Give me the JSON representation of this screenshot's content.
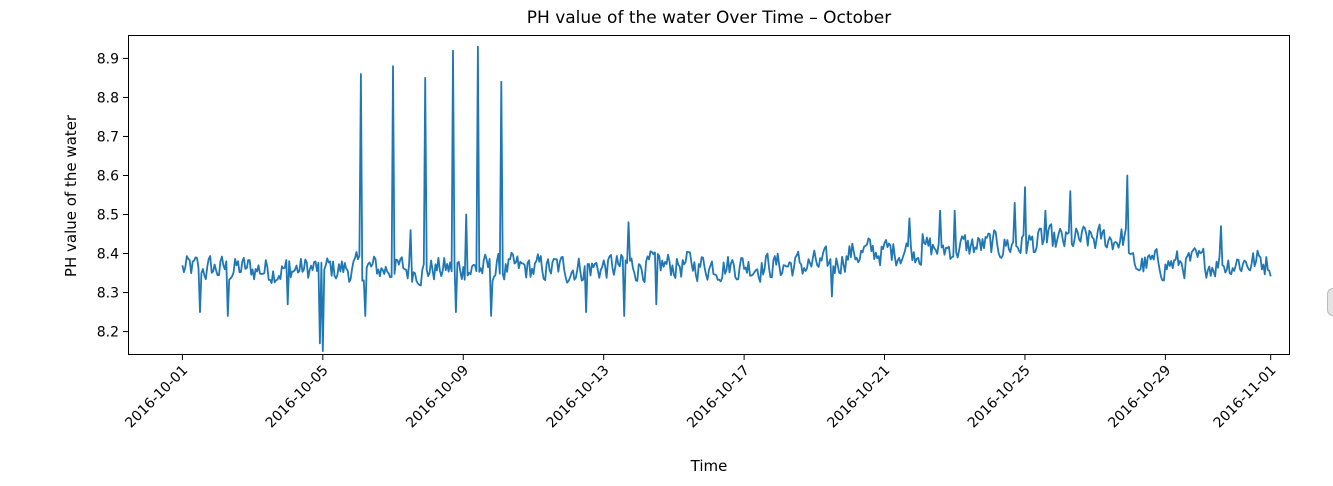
{
  "chart_data": {
    "type": "line",
    "title": "PH value of the water Over Time – October",
    "xlabel": "Time",
    "ylabel": "PH value of the water",
    "ylim": [
      8.14,
      8.96
    ],
    "y_ticks": [
      8.2,
      8.3,
      8.4,
      8.5,
      8.6,
      8.7,
      8.8,
      8.9
    ],
    "x_range_days": [
      -1.55,
      31.55
    ],
    "x_ticks": [
      {
        "day": 0,
        "label": "2016-10-01"
      },
      {
        "day": 4,
        "label": "2016-10-05"
      },
      {
        "day": 8,
        "label": "2016-10-09"
      },
      {
        "day": 12,
        "label": "2016-10-13"
      },
      {
        "day": 16,
        "label": "2016-10-17"
      },
      {
        "day": 20,
        "label": "2016-10-21"
      },
      {
        "day": 24,
        "label": "2016-10-25"
      },
      {
        "day": 28,
        "label": "2016-10-29"
      },
      {
        "day": 31,
        "label": "2016-11-01"
      }
    ],
    "grid": false,
    "series": [
      {
        "name": "PH value of the water",
        "color": "#1f77b4",
        "sampling": "hourly",
        "start": "2016-10-01 00:00",
        "end": "2016-11-01 00:00",
        "baseline": [
          {
            "day": 0,
            "value": 8.36
          },
          {
            "day": 10,
            "value": 8.36
          },
          {
            "day": 14,
            "value": 8.37
          },
          {
            "day": 18.5,
            "value": 8.37
          },
          {
            "day": 19,
            "value": 8.4
          },
          {
            "day": 23,
            "value": 8.42
          },
          {
            "day": 26.9,
            "value": 8.44
          },
          {
            "day": 27,
            "value": 8.37
          },
          {
            "day": 31,
            "value": 8.38
          }
        ],
        "noise_amplitude": 0.045,
        "spikes": [
          {
            "day": 5.1,
            "value": 8.86
          },
          {
            "day": 6.0,
            "value": 8.88
          },
          {
            "day": 6.9,
            "value": 8.85
          },
          {
            "day": 7.7,
            "value": 8.92
          },
          {
            "day": 8.1,
            "value": 8.5
          },
          {
            "day": 8.4,
            "value": 8.93
          },
          {
            "day": 9.1,
            "value": 8.84
          },
          {
            "day": 4.0,
            "value": 8.15
          },
          {
            "day": 3.9,
            "value": 8.17
          },
          {
            "day": 0.5,
            "value": 8.25
          },
          {
            "day": 1.3,
            "value": 8.24
          },
          {
            "day": 3.0,
            "value": 8.27
          },
          {
            "day": 5.2,
            "value": 8.24
          },
          {
            "day": 7.8,
            "value": 8.25
          },
          {
            "day": 8.8,
            "value": 8.24
          },
          {
            "day": 11.5,
            "value": 8.25
          },
          {
            "day": 12.6,
            "value": 8.24
          },
          {
            "day": 13.5,
            "value": 8.27
          },
          {
            "day": 18.5,
            "value": 8.29
          },
          {
            "day": 12.7,
            "value": 8.48
          },
          {
            "day": 24.0,
            "value": 8.57
          },
          {
            "day": 25.3,
            "value": 8.56
          },
          {
            "day": 26.9,
            "value": 8.6
          },
          {
            "day": 23.7,
            "value": 8.53
          },
          {
            "day": 29.6,
            "value": 8.47
          },
          {
            "day": 20.7,
            "value": 8.49
          },
          {
            "day": 21.6,
            "value": 8.51
          },
          {
            "day": 22.0,
            "value": 8.51
          },
          {
            "day": 24.6,
            "value": 8.51
          },
          {
            "day": 21.1,
            "value": 8.45
          },
          {
            "day": 6.5,
            "value": 8.46
          }
        ]
      }
    ]
  }
}
